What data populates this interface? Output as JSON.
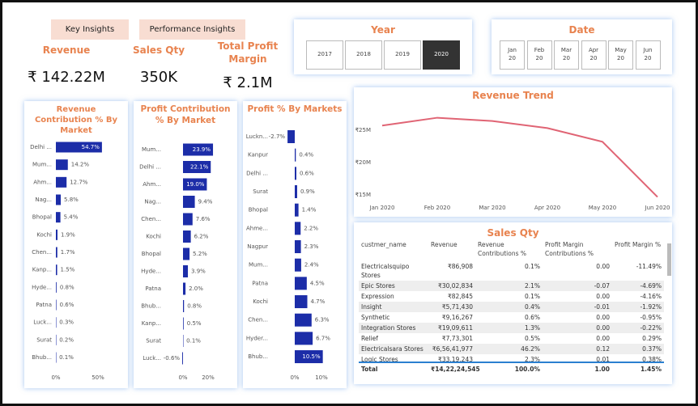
{
  "tabs": [
    "Key Insights",
    "Performance Insights"
  ],
  "kpis": [
    {
      "label": "Revenue",
      "value": "₹ 142.22M"
    },
    {
      "label": "Sales Qty",
      "value": "350K"
    },
    {
      "label": "Total Profit Margin",
      "value": "₹ 2.1M"
    }
  ],
  "year_slicer": {
    "title": "Year",
    "options": [
      "2017",
      "2018",
      "2019",
      "2020"
    ],
    "selected": "2020"
  },
  "date_slicer": {
    "title": "Date",
    "options": [
      {
        "month": "Jan",
        "year": "20"
      },
      {
        "month": "Feb",
        "year": "20"
      },
      {
        "month": "Mar",
        "year": "20"
      },
      {
        "month": "Apr",
        "year": "20"
      },
      {
        "month": "May",
        "year": "20"
      },
      {
        "month": "Jun",
        "year": "20"
      }
    ]
  },
  "chart_data": [
    {
      "type": "hbar",
      "title": "Revenue Contribution % By Market",
      "color": "#1c2da8",
      "categories": [
        "Delhi ...",
        "Mum...",
        "Ahm...",
        "Nag...",
        "Bhopal",
        "Kochi",
        "Chen...",
        "Kanp...",
        "Hyde...",
        "Patna",
        "Luck...",
        "Surat",
        "Bhub..."
      ],
      "values": [
        54.7,
        14.2,
        12.7,
        5.8,
        5.4,
        1.9,
        1.7,
        1.5,
        0.8,
        0.6,
        0.3,
        0.2,
        0.1
      ],
      "value_labels": [
        "54.7%",
        "14.2%",
        "12.7%",
        "5.8%",
        "5.4%",
        "1.9%",
        "1.7%",
        "1.5%",
        "0.8%",
        "0.6%",
        "0.3%",
        "0.2%",
        "0.1%"
      ],
      "xlim": [
        0,
        75
      ],
      "xticks": [
        {
          "value": 0,
          "label": "0%"
        },
        {
          "value": 50,
          "label": "50%"
        }
      ]
    },
    {
      "type": "hbar",
      "title": "Profit Contribution % By Market",
      "color": "#1c2da8",
      "categories": [
        "Mum...",
        "Delhi ...",
        "Ahm...",
        "Nag...",
        "Chen...",
        "Kochi",
        "Bhopal",
        "Hyde...",
        "Patna",
        "Bhub...",
        "Kanp...",
        "Surat",
        "Luck..."
      ],
      "values": [
        23.9,
        22.1,
        19.0,
        9.4,
        7.6,
        6.2,
        5.2,
        3.9,
        2.0,
        0.8,
        0.5,
        0.1,
        -0.6
      ],
      "value_labels": [
        "23.9%",
        "22.1%",
        "19.0%",
        "9.4%",
        "7.6%",
        "6.2%",
        "5.2%",
        "3.9%",
        "2.0%",
        "0.8%",
        "0.5%",
        "0.1%",
        "-0.6%"
      ],
      "xlim": [
        -2,
        28
      ],
      "xticks": [
        {
          "value": 0,
          "label": "0%"
        },
        {
          "value": 20,
          "label": "20%"
        }
      ]
    },
    {
      "type": "hbar",
      "title": "Profit % By Markets",
      "color": "#1c2da8",
      "categories": [
        "Luckn...",
        "Kanpur",
        "Delhi ...",
        "Surat",
        "Bhopal",
        "Ahme...",
        "Nagpur",
        "Mum...",
        "Patna",
        "Kochi",
        "Chen...",
        "Hyder...",
        "Bhub..."
      ],
      "values": [
        -2.7,
        0.4,
        0.6,
        0.9,
        1.4,
        2.2,
        2.3,
        2.4,
        4.5,
        4.7,
        6.3,
        6.7,
        10.5
      ],
      "value_labels": [
        "-2.7%",
        "0.4%",
        "0.6%",
        "0.9%",
        "1.4%",
        "2.2%",
        "2.3%",
        "2.4%",
        "4.5%",
        "4.7%",
        "6.3%",
        "6.7%",
        "10.5%"
      ],
      "xlim": [
        -3,
        12
      ],
      "xticks": [
        {
          "value": 0,
          "label": "0%"
        },
        {
          "value": 10,
          "label": "10%"
        }
      ]
    },
    {
      "type": "line",
      "title": "Revenue Trend",
      "color": "#e06474",
      "categories": [
        "Jan 2020",
        "Feb 2020",
        "Mar 2020",
        "Apr 2020",
        "May 2020",
        "Jun 2020"
      ],
      "values": [
        25700000,
        26900000,
        26400000,
        25300000,
        23200000,
        14700000
      ],
      "ylim": [
        13000000,
        27500000
      ],
      "yticks": [
        {
          "value": 15000000,
          "label": "₹15M"
        },
        {
          "value": 20000000,
          "label": "₹20M"
        },
        {
          "value": 25000000,
          "label": "₹25M"
        }
      ]
    }
  ],
  "table": {
    "title": "Sales Qty",
    "columns": [
      "custmer_name",
      "Revenue",
      "Revenue Contributions %",
      "Profit Margin Contributions %",
      "Profit Margin %"
    ],
    "rows": [
      [
        "Electricalsquipo Stores",
        "₹86,908",
        "0.1%",
        "0.00",
        "-11.49%"
      ],
      [
        "Epic Stores",
        "₹30,02,834",
        "2.1%",
        "-0.07",
        "-4.69%"
      ],
      [
        "Expression",
        "₹82,845",
        "0.1%",
        "0.00",
        "-4.16%"
      ],
      [
        "Insight",
        "₹5,71,430",
        "0.4%",
        "-0.01",
        "-1.92%"
      ],
      [
        "Synthetic",
        "₹9,16,267",
        "0.6%",
        "0.00",
        "-0.95%"
      ],
      [
        "Integration Stores",
        "₹19,09,611",
        "1.3%",
        "0.00",
        "-0.22%"
      ],
      [
        "Relief",
        "₹7,73,301",
        "0.5%",
        "0.00",
        "0.29%"
      ],
      [
        "Electricalsara Stores",
        "₹6,56,41,977",
        "46.2%",
        "0.12",
        "0.37%"
      ],
      [
        "Logic Stores",
        "₹33,19,243",
        "2.3%",
        "0.01",
        "0.38%"
      ]
    ],
    "total": [
      "Total",
      "₹14,22,24,545",
      "100.0%",
      "1.00",
      "1.45%"
    ]
  }
}
